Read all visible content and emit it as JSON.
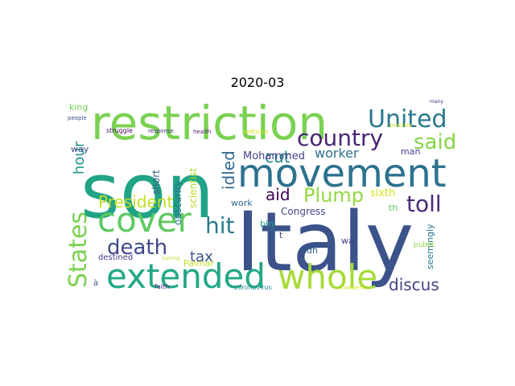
{
  "title": "2020-03",
  "words": [
    {
      "text": "son",
      "color": "#20a386"
    },
    {
      "text": "Italy",
      "color": "#3b528b"
    },
    {
      "text": "restriction",
      "color": "#7ad151"
    },
    {
      "text": "movement",
      "color": "#2c728e"
    },
    {
      "text": "extended",
      "color": "#22a884"
    },
    {
      "text": "whole",
      "color": "#a5db36"
    },
    {
      "text": "cover",
      "color": "#5ec962"
    },
    {
      "text": "United",
      "color": "#2a788e"
    },
    {
      "text": "country",
      "color": "#482475"
    },
    {
      "text": "States",
      "color": "#7ad151"
    },
    {
      "text": "death",
      "color": "#3e4989"
    },
    {
      "text": "hit",
      "color": "#287c8e"
    },
    {
      "text": "toll",
      "color": "#482878"
    },
    {
      "text": "said",
      "color": "#86d549"
    },
    {
      "text": "Plump",
      "color": "#95d840"
    },
    {
      "text": "President",
      "color": "#c2df23"
    },
    {
      "text": "discus",
      "color": "#414487"
    },
    {
      "text": "idled",
      "color": "#31688e"
    },
    {
      "text": "hour",
      "color": "#1f958b"
    },
    {
      "text": "cut",
      "color": "#25858e"
    },
    {
      "text": "aid",
      "color": "#440154"
    },
    {
      "text": "tax",
      "color": "#3b528b"
    },
    {
      "text": "worker",
      "color": "#2e6f8e"
    },
    {
      "text": "Mohammed",
      "color": "#414487"
    },
    {
      "text": "scientist",
      "color": "#b5de2b"
    },
    {
      "text": "obscurity",
      "color": "#2d708e"
    },
    {
      "text": "short",
      "color": "#355f8d"
    },
    {
      "text": "Congress",
      "color": "#3e4a89"
    },
    {
      "text": "sixth",
      "color": "#d8e219"
    },
    {
      "text": "king",
      "color": "#6ece58"
    },
    {
      "text": "way",
      "color": "#3f4788"
    },
    {
      "text": "man",
      "color": "#433e85"
    },
    {
      "text": "work",
      "color": "#31678e"
    },
    {
      "text": "bin",
      "color": "#1f9e89"
    },
    {
      "text": "t",
      "color": "#404688"
    },
    {
      "text": "didn",
      "color": "#34618d"
    },
    {
      "text": "wa",
      "color": "#453882"
    },
    {
      "text": "th",
      "color": "#54c568"
    },
    {
      "text": "Palmar",
      "color": "#c0df25"
    },
    {
      "text": "destined",
      "color": "#443a83"
    },
    {
      "text": "seemingly",
      "color": "#2a768e"
    },
    {
      "text": "public",
      "color": "#8fd744"
    },
    {
      "text": "à",
      "color": "#3b528b"
    },
    {
      "text": "faith",
      "color": "#482173"
    },
    {
      "text": "coronavirus",
      "color": "#238a8d"
    },
    {
      "text": "concern",
      "color": "#dde318"
    },
    {
      "text": "struggle",
      "color": "#460b5e"
    },
    {
      "text": "response",
      "color": "#472d7b"
    },
    {
      "text": "health",
      "color": "#48186a"
    },
    {
      "text": "politician",
      "color": "#d2e21b"
    },
    {
      "text": "practice",
      "color": "#c8e020"
    },
    {
      "text": "people",
      "color": "#3e4c8a"
    },
    {
      "text": "many",
      "color": "#472c7a"
    },
    {
      "text": "turning",
      "color": "#bddf26"
    },
    {
      "text": "raise",
      "color": "#25838e"
    }
  ]
}
